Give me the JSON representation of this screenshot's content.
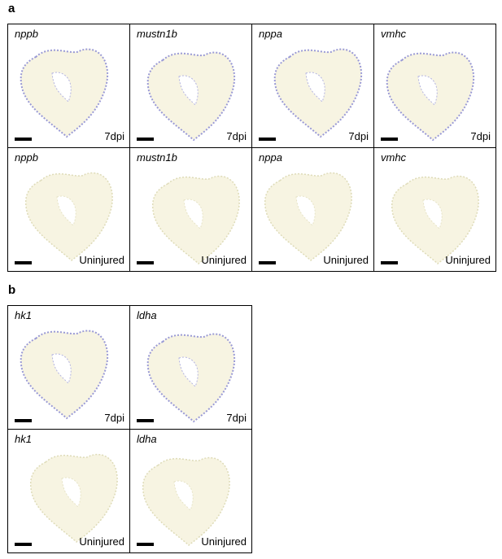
{
  "panels": [
    {
      "label": "a",
      "tiles": [
        {
          "gene": "nppb",
          "condition": "7dpi"
        },
        {
          "gene": "mustn1b",
          "condition": "7dpi"
        },
        {
          "gene": "nppa",
          "condition": "7dpi"
        },
        {
          "gene": "vmhc",
          "condition": "7dpi"
        },
        {
          "gene": "nppb",
          "condition": "Uninjured"
        },
        {
          "gene": "mustn1b",
          "condition": "Uninjured"
        },
        {
          "gene": "nppa",
          "condition": "Uninjured"
        },
        {
          "gene": "vmhc",
          "condition": "Uninjured"
        }
      ]
    },
    {
      "label": "b",
      "tiles": [
        {
          "gene": "hk1",
          "condition": "7dpi"
        },
        {
          "gene": "ldha",
          "condition": "7dpi"
        },
        {
          "gene": "hk1",
          "condition": "Uninjured"
        },
        {
          "gene": "ldha",
          "condition": "Uninjured"
        }
      ]
    }
  ]
}
